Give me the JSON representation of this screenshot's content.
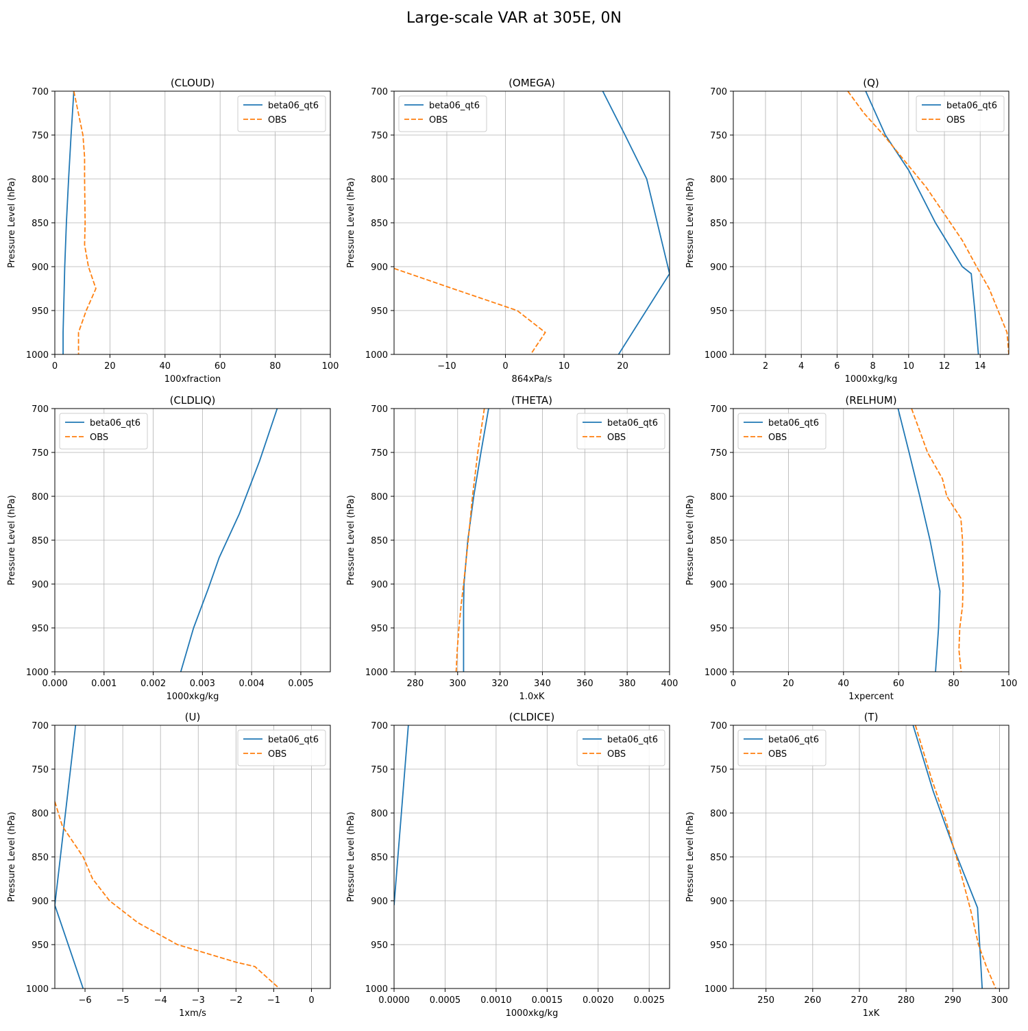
{
  "figure": {
    "title": "Large-scale VAR at 305E, 0N"
  },
  "colors": {
    "model": "#1f77b4",
    "obs": "#ff7f0e",
    "grid": "#b0b0b0"
  },
  "chart_data": [
    {
      "type": "line",
      "title": "(CLOUD)",
      "xlabel": "100xfraction",
      "ylabel": "Pressure Level (hPa)",
      "xlim": [
        0,
        100
      ],
      "ylim": [
        1000,
        700
      ],
      "y_inverted": true,
      "xticks": [
        0,
        20,
        40,
        60,
        80,
        100
      ],
      "xtick_labels": [
        "0",
        "20",
        "40",
        "60",
        "80",
        "100"
      ],
      "yticks": [
        700,
        750,
        800,
        850,
        900,
        950,
        1000
      ],
      "ytick_labels": [
        "700",
        "750",
        "800",
        "850",
        "900",
        "950",
        "1000"
      ],
      "grid": true,
      "legend": "upper right",
      "series": [
        {
          "name": "beta06_qt6",
          "style": "solid",
          "points": [
            [
              6.9,
              700
            ],
            [
              5.9,
              750
            ],
            [
              5.0,
              800
            ],
            [
              4.2,
              850
            ],
            [
              3.6,
              900
            ],
            [
              3.4,
              925
            ],
            [
              3.2,
              950
            ],
            [
              3.0,
              975
            ],
            [
              3.0,
              1000
            ]
          ]
        },
        {
          "name": "OBS",
          "style": "dashed",
          "points": [
            [
              6.9,
              700
            ],
            [
              10.2,
              750
            ],
            [
              10.8,
              775
            ],
            [
              10.8,
              800
            ],
            [
              11.0,
              850
            ],
            [
              10.8,
              875
            ],
            [
              12.2,
              900
            ],
            [
              14.9,
              925
            ],
            [
              11.4,
              950
            ],
            [
              8.6,
              975
            ],
            [
              8.6,
              1000
            ]
          ]
        }
      ]
    },
    {
      "type": "line",
      "title": "(OMEGA)",
      "xlabel": "864xPa/s",
      "ylabel": "Pressure Level (hPa)",
      "xlim": [
        -19,
        28
      ],
      "ylim": [
        1000,
        700
      ],
      "y_inverted": true,
      "xticks": [
        -10,
        0,
        10,
        20
      ],
      "xtick_labels": [
        "−10",
        "0",
        "10",
        "20"
      ],
      "yticks": [
        700,
        750,
        800,
        850,
        900,
        950,
        1000
      ],
      "ytick_labels": [
        "700",
        "750",
        "800",
        "850",
        "900",
        "950",
        "1000"
      ],
      "grid": true,
      "legend": "upper left",
      "series": [
        {
          "name": "beta06_qt6",
          "style": "solid",
          "points": [
            [
              16.6,
              700
            ],
            [
              20.4,
              750
            ],
            [
              24.1,
              800
            ],
            [
              28.0,
              908
            ],
            [
              19.3,
              1000
            ]
          ]
        },
        {
          "name": "OBS",
          "style": "dashed",
          "points": [
            [
              -19.0,
              902
            ],
            [
              -9.0,
              925
            ],
            [
              2.0,
              950
            ],
            [
              6.8,
              975
            ],
            [
              4.3,
              1000
            ]
          ]
        }
      ]
    },
    {
      "type": "line",
      "title": "(Q)",
      "xlabel": "1000xkg/kg",
      "ylabel": "Pressure Level (hPa)",
      "xlim": [
        0.2,
        15.6
      ],
      "ylim": [
        1000,
        700
      ],
      "y_inverted": true,
      "xticks": [
        2,
        4,
        6,
        8,
        10,
        12,
        14
      ],
      "xtick_labels": [
        "2",
        "4",
        "6",
        "8",
        "10",
        "12",
        "14"
      ],
      "yticks": [
        700,
        750,
        800,
        850,
        900,
        950,
        1000
      ],
      "ytick_labels": [
        "700",
        "750",
        "800",
        "850",
        "900",
        "950",
        "1000"
      ],
      "grid": true,
      "legend": "upper right",
      "series": [
        {
          "name": "beta06_qt6",
          "style": "solid",
          "points": [
            [
              7.6,
              700
            ],
            [
              8.7,
              750
            ],
            [
              10.0,
              790
            ],
            [
              11.5,
              850
            ],
            [
              13.0,
              900
            ],
            [
              13.5,
              908
            ],
            [
              13.7,
              950
            ],
            [
              13.9,
              1000
            ]
          ]
        },
        {
          "name": "OBS",
          "style": "dashed",
          "points": [
            [
              6.6,
              700
            ],
            [
              7.5,
              725
            ],
            [
              8.6,
              750
            ],
            [
              9.8,
              780
            ],
            [
              11.0,
              810
            ],
            [
              12.0,
              840
            ],
            [
              13.0,
              870
            ],
            [
              13.8,
              900
            ],
            [
              14.5,
              925
            ],
            [
              15.0,
              950
            ],
            [
              15.5,
              975
            ],
            [
              15.6,
              1000
            ]
          ]
        }
      ]
    },
    {
      "type": "line",
      "title": "(CLDLIQ)",
      "xlabel": "1000xkg/kg",
      "ylabel": "Pressure Level (hPa)",
      "xlim": [
        0,
        0.0056
      ],
      "ylim": [
        1000,
        700
      ],
      "y_inverted": true,
      "xticks": [
        0,
        0.001,
        0.002,
        0.003,
        0.004,
        0.005
      ],
      "xtick_labels": [
        "0.000",
        "0.001",
        "0.002",
        "0.003",
        "0.004",
        "0.005"
      ],
      "yticks": [
        700,
        750,
        800,
        850,
        900,
        950,
        1000
      ],
      "ytick_labels": [
        "700",
        "750",
        "800",
        "850",
        "900",
        "950",
        "1000"
      ],
      "grid": true,
      "legend": "upper left",
      "series": [
        {
          "name": "beta06_qt6",
          "style": "solid",
          "points": [
            [
              0.00452,
              700
            ],
            [
              0.00416,
              760
            ],
            [
              0.00375,
              820
            ],
            [
              0.00334,
              870
            ],
            [
              0.00312,
              905
            ],
            [
              0.00282,
              950
            ],
            [
              0.00256,
              1000
            ]
          ]
        },
        {
          "name": "OBS",
          "style": "dashed",
          "points": []
        }
      ]
    },
    {
      "type": "line",
      "title": "(THETA)",
      "xlabel": "1.0xK",
      "ylabel": "Pressure Level (hPa)",
      "xlim": [
        270,
        400
      ],
      "ylim": [
        1000,
        700
      ],
      "y_inverted": true,
      "xticks": [
        280,
        300,
        320,
        340,
        360,
        380,
        400
      ],
      "xtick_labels": [
        "280",
        "300",
        "320",
        "340",
        "360",
        "380",
        "400"
      ],
      "yticks": [
        700,
        750,
        800,
        850,
        900,
        950,
        1000
      ],
      "ytick_labels": [
        "700",
        "750",
        "800",
        "850",
        "900",
        "950",
        "1000"
      ],
      "grid": true,
      "legend": "upper right",
      "series": [
        {
          "name": "beta06_qt6",
          "style": "solid",
          "points": [
            [
              314.6,
              700
            ],
            [
              311.0,
              750
            ],
            [
              307.6,
              800
            ],
            [
              304.8,
              850
            ],
            [
              303.0,
              900
            ],
            [
              302.8,
              925
            ],
            [
              302.8,
              1000
            ]
          ]
        },
        {
          "name": "OBS",
          "style": "dashed",
          "points": [
            [
              312.6,
              700
            ],
            [
              309.5,
              750
            ],
            [
              307.0,
              800
            ],
            [
              305.0,
              850
            ],
            [
              302.8,
              900
            ],
            [
              301.6,
              925
            ],
            [
              300.6,
              950
            ],
            [
              299.8,
              975
            ],
            [
              299.3,
              1000
            ]
          ]
        }
      ]
    },
    {
      "type": "line",
      "title": "(RELHUM)",
      "xlabel": "1xpercent",
      "ylabel": "Pressure Level (hPa)",
      "xlim": [
        0,
        100
      ],
      "ylim": [
        1000,
        700
      ],
      "y_inverted": true,
      "xticks": [
        0,
        20,
        40,
        60,
        80,
        100
      ],
      "xtick_labels": [
        "0",
        "20",
        "40",
        "60",
        "80",
        "100"
      ],
      "yticks": [
        700,
        750,
        800,
        850,
        900,
        950,
        1000
      ],
      "ytick_labels": [
        "700",
        "750",
        "800",
        "850",
        "900",
        "950",
        "1000"
      ],
      "grid": true,
      "legend": "upper left",
      "series": [
        {
          "name": "beta06_qt6",
          "style": "solid",
          "points": [
            [
              59.8,
              700
            ],
            [
              63.8,
              750
            ],
            [
              67.7,
              800
            ],
            [
              71.4,
              850
            ],
            [
              75.0,
              908
            ],
            [
              74.5,
              950
            ],
            [
              73.4,
              1000
            ]
          ]
        },
        {
          "name": "OBS",
          "style": "dashed",
          "points": [
            [
              64.7,
              700
            ],
            [
              70.5,
              750
            ],
            [
              75.9,
              780
            ],
            [
              77.5,
              800
            ],
            [
              82.6,
              825
            ],
            [
              83.2,
              850
            ],
            [
              83.4,
              900
            ],
            [
              83.2,
              925
            ],
            [
              82.2,
              950
            ],
            [
              81.9,
              975
            ],
            [
              82.7,
              1000
            ]
          ]
        }
      ]
    },
    {
      "type": "line",
      "title": "(U)",
      "xlabel": "1xm/s",
      "ylabel": "Pressure Level (hPa)",
      "xlim": [
        -6.8,
        0.5
      ],
      "ylim": [
        1000,
        700
      ],
      "y_inverted": true,
      "xticks": [
        -6,
        -5,
        -4,
        -3,
        -2,
        -1,
        0
      ],
      "xtick_labels": [
        "−6",
        "−5",
        "−4",
        "−3",
        "−2",
        "−1",
        "0"
      ],
      "yticks": [
        700,
        750,
        800,
        850,
        900,
        950,
        1000
      ],
      "ytick_labels": [
        "700",
        "750",
        "800",
        "850",
        "900",
        "950",
        "1000"
      ],
      "grid": true,
      "legend": "upper right",
      "series": [
        {
          "name": "beta06_qt6",
          "style": "solid",
          "points": [
            [
              -6.25,
              700
            ],
            [
              -6.8,
              905
            ],
            [
              -6.05,
              1000
            ]
          ]
        },
        {
          "name": "OBS",
          "style": "dashed",
          "points": [
            [
              -6.8,
              787
            ],
            [
              -6.6,
              815
            ],
            [
              -6.05,
              850
            ],
            [
              -5.8,
              875
            ],
            [
              -5.35,
              900
            ],
            [
              -4.6,
              925
            ],
            [
              -3.55,
              950
            ],
            [
              -2.0,
              970
            ],
            [
              -1.5,
              975
            ],
            [
              -0.85,
              1000
            ]
          ]
        }
      ]
    },
    {
      "type": "line",
      "title": "(CLDICE)",
      "xlabel": "1000xkg/kg",
      "ylabel": "Pressure Level (hPa)",
      "xlim": [
        0,
        0.0027
      ],
      "ylim": [
        1000,
        700
      ],
      "y_inverted": true,
      "xticks": [
        0,
        0.0005,
        0.001,
        0.0015,
        0.002,
        0.0025
      ],
      "xtick_labels": [
        "0.0000",
        "0.0005",
        "0.0010",
        "0.0015",
        "0.0020",
        "0.0025"
      ],
      "yticks": [
        700,
        750,
        800,
        850,
        900,
        950,
        1000
      ],
      "ytick_labels": [
        "700",
        "750",
        "800",
        "850",
        "900",
        "950",
        "1000"
      ],
      "grid": true,
      "legend": "upper right",
      "series": [
        {
          "name": "beta06_qt6",
          "style": "solid",
          "points": [
            [
              0.00014,
              700
            ],
            [
              0.0,
              905
            ]
          ]
        },
        {
          "name": "OBS",
          "style": "dashed",
          "points": []
        }
      ]
    },
    {
      "type": "line",
      "title": "(T)",
      "xlabel": "1xK",
      "ylabel": "Pressure Level (hPa)",
      "xlim": [
        243,
        302
      ],
      "ylim": [
        1000,
        700
      ],
      "y_inverted": true,
      "xticks": [
        250,
        260,
        270,
        280,
        290,
        300
      ],
      "xtick_labels": [
        "250",
        "260",
        "270",
        "280",
        "290",
        "300"
      ],
      "yticks": [
        700,
        750,
        800,
        850,
        900,
        950,
        1000
      ],
      "ytick_labels": [
        "700",
        "750",
        "800",
        "850",
        "900",
        "950",
        "1000"
      ],
      "grid": true,
      "legend": "upper left",
      "series": [
        {
          "name": "beta06_qt6",
          "style": "solid",
          "points": [
            [
              281.5,
              700
            ],
            [
              285.8,
              775
            ],
            [
              290.2,
              840
            ],
            [
              294.7,
              900
            ],
            [
              295.3,
              908
            ],
            [
              296.3,
              1000
            ]
          ]
        },
        {
          "name": "OBS",
          "style": "dashed",
          "points": [
            [
              282.0,
              700
            ],
            [
              285.4,
              760
            ],
            [
              288.6,
              810
            ],
            [
              291.3,
              860
            ],
            [
              293.8,
              910
            ],
            [
              295.5,
              950
            ],
            [
              297.2,
              975
            ],
            [
              299.2,
              1000
            ]
          ]
        }
      ]
    }
  ]
}
